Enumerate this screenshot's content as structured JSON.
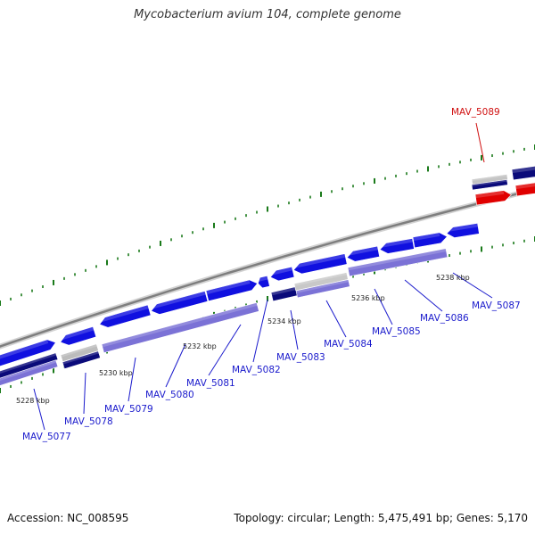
{
  "title": "Mycobacterium avium 104, complete genome",
  "footer": {
    "accession": "Accession: NC_008595",
    "stats": "Topology: circular; Length: 5,475,491 bp; Genes: 5,170"
  },
  "colors": {
    "forward_gene": "#1010e0",
    "reverse_gene": "#7b72d6",
    "dark_gene": "#0a0a7a",
    "highlight_gene": "#e00000",
    "backbone": "#8a8a8a",
    "tick": "#1a7a1a",
    "label": "#1a1acc",
    "highlight_label": "#d01010"
  },
  "tick_labels": [
    "5228 kbp",
    "5230 kbp",
    "5232 kbp",
    "5234 kbp",
    "5236 kbp",
    "5238 kbp"
  ],
  "genes": [
    {
      "label": "MAV_5077"
    },
    {
      "label": "MAV_5078"
    },
    {
      "label": "MAV_5079"
    },
    {
      "label": "MAV_5080"
    },
    {
      "label": "MAV_5081"
    },
    {
      "label": "MAV_5082"
    },
    {
      "label": "MAV_5083"
    },
    {
      "label": "MAV_5084"
    },
    {
      "label": "MAV_5085"
    },
    {
      "label": "MAV_5086"
    },
    {
      "label": "MAV_5087"
    },
    {
      "label": "MAV_5089",
      "highlight": true
    }
  ]
}
